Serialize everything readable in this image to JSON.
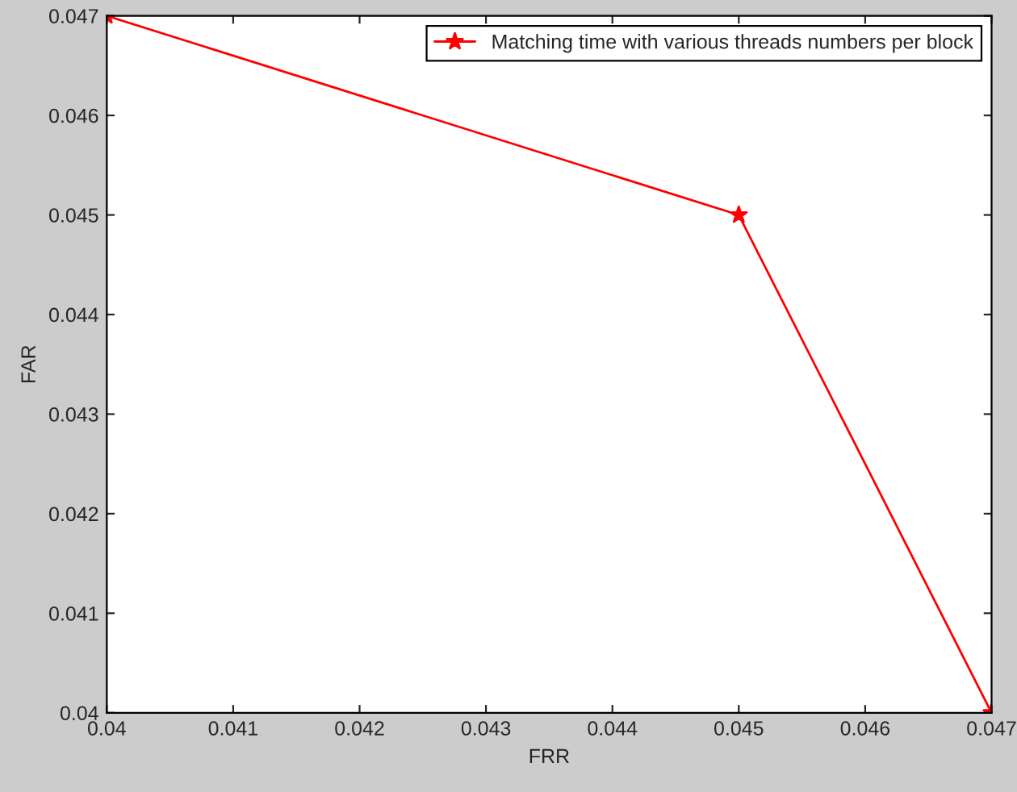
{
  "chart_data": {
    "type": "line",
    "xlabel": "FRR",
    "ylabel": "FAR",
    "x": [
      0.04,
      0.045,
      0.047
    ],
    "series": [
      {
        "name": "Matching time with various threads numbers per block",
        "color": "#ff0000",
        "values": [
          0.047,
          0.045,
          0.04
        ]
      }
    ],
    "xlim": [
      0.04,
      0.047
    ],
    "ylim": [
      0.04,
      0.047
    ],
    "xticks": [
      0.04,
      0.041,
      0.042,
      0.043,
      0.044,
      0.045,
      0.046,
      0.047
    ],
    "yticks": [
      0.04,
      0.041,
      0.042,
      0.043,
      0.044,
      0.045,
      0.046,
      0.047
    ],
    "marker": "star",
    "line_style": "solid",
    "legend": "top right",
    "grid": false
  }
}
